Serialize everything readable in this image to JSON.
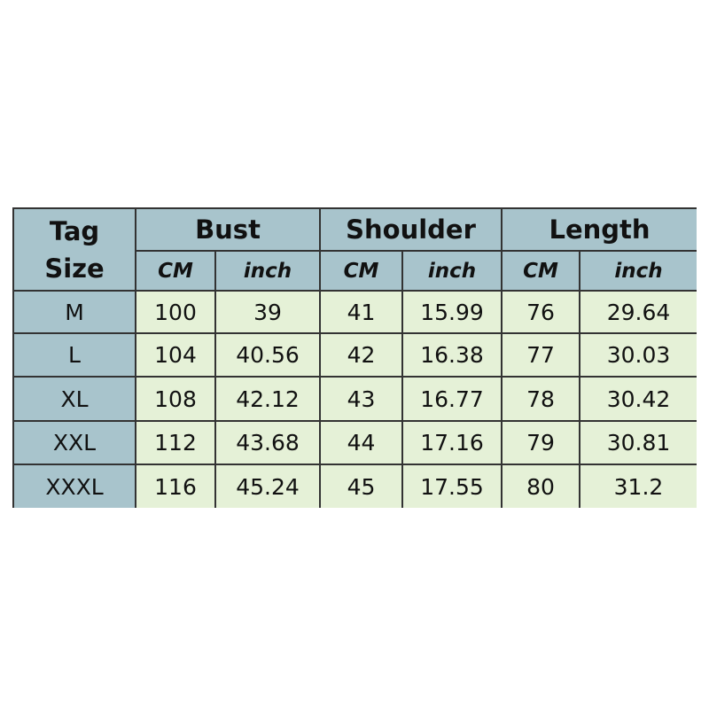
{
  "table": {
    "tag_header": [
      "Tag",
      "Size"
    ],
    "groups": [
      "Bust",
      "Shoulder",
      "Length"
    ],
    "units": [
      "CM",
      "inch",
      "CM",
      "inch",
      "CM",
      "inch"
    ],
    "rows": [
      [
        "M",
        100,
        39,
        41,
        15.99,
        76,
        29.64
      ],
      [
        "L",
        104,
        40.56,
        42,
        16.38,
        77,
        30.03
      ],
      [
        "XL",
        108,
        42.12,
        43,
        16.77,
        78,
        30.42
      ],
      [
        "XXL",
        112,
        43.68,
        44,
        17.16,
        79,
        30.81
      ],
      [
        "XXXL",
        116,
        45.24,
        45,
        17.55,
        80,
        31.2
      ]
    ]
  }
}
